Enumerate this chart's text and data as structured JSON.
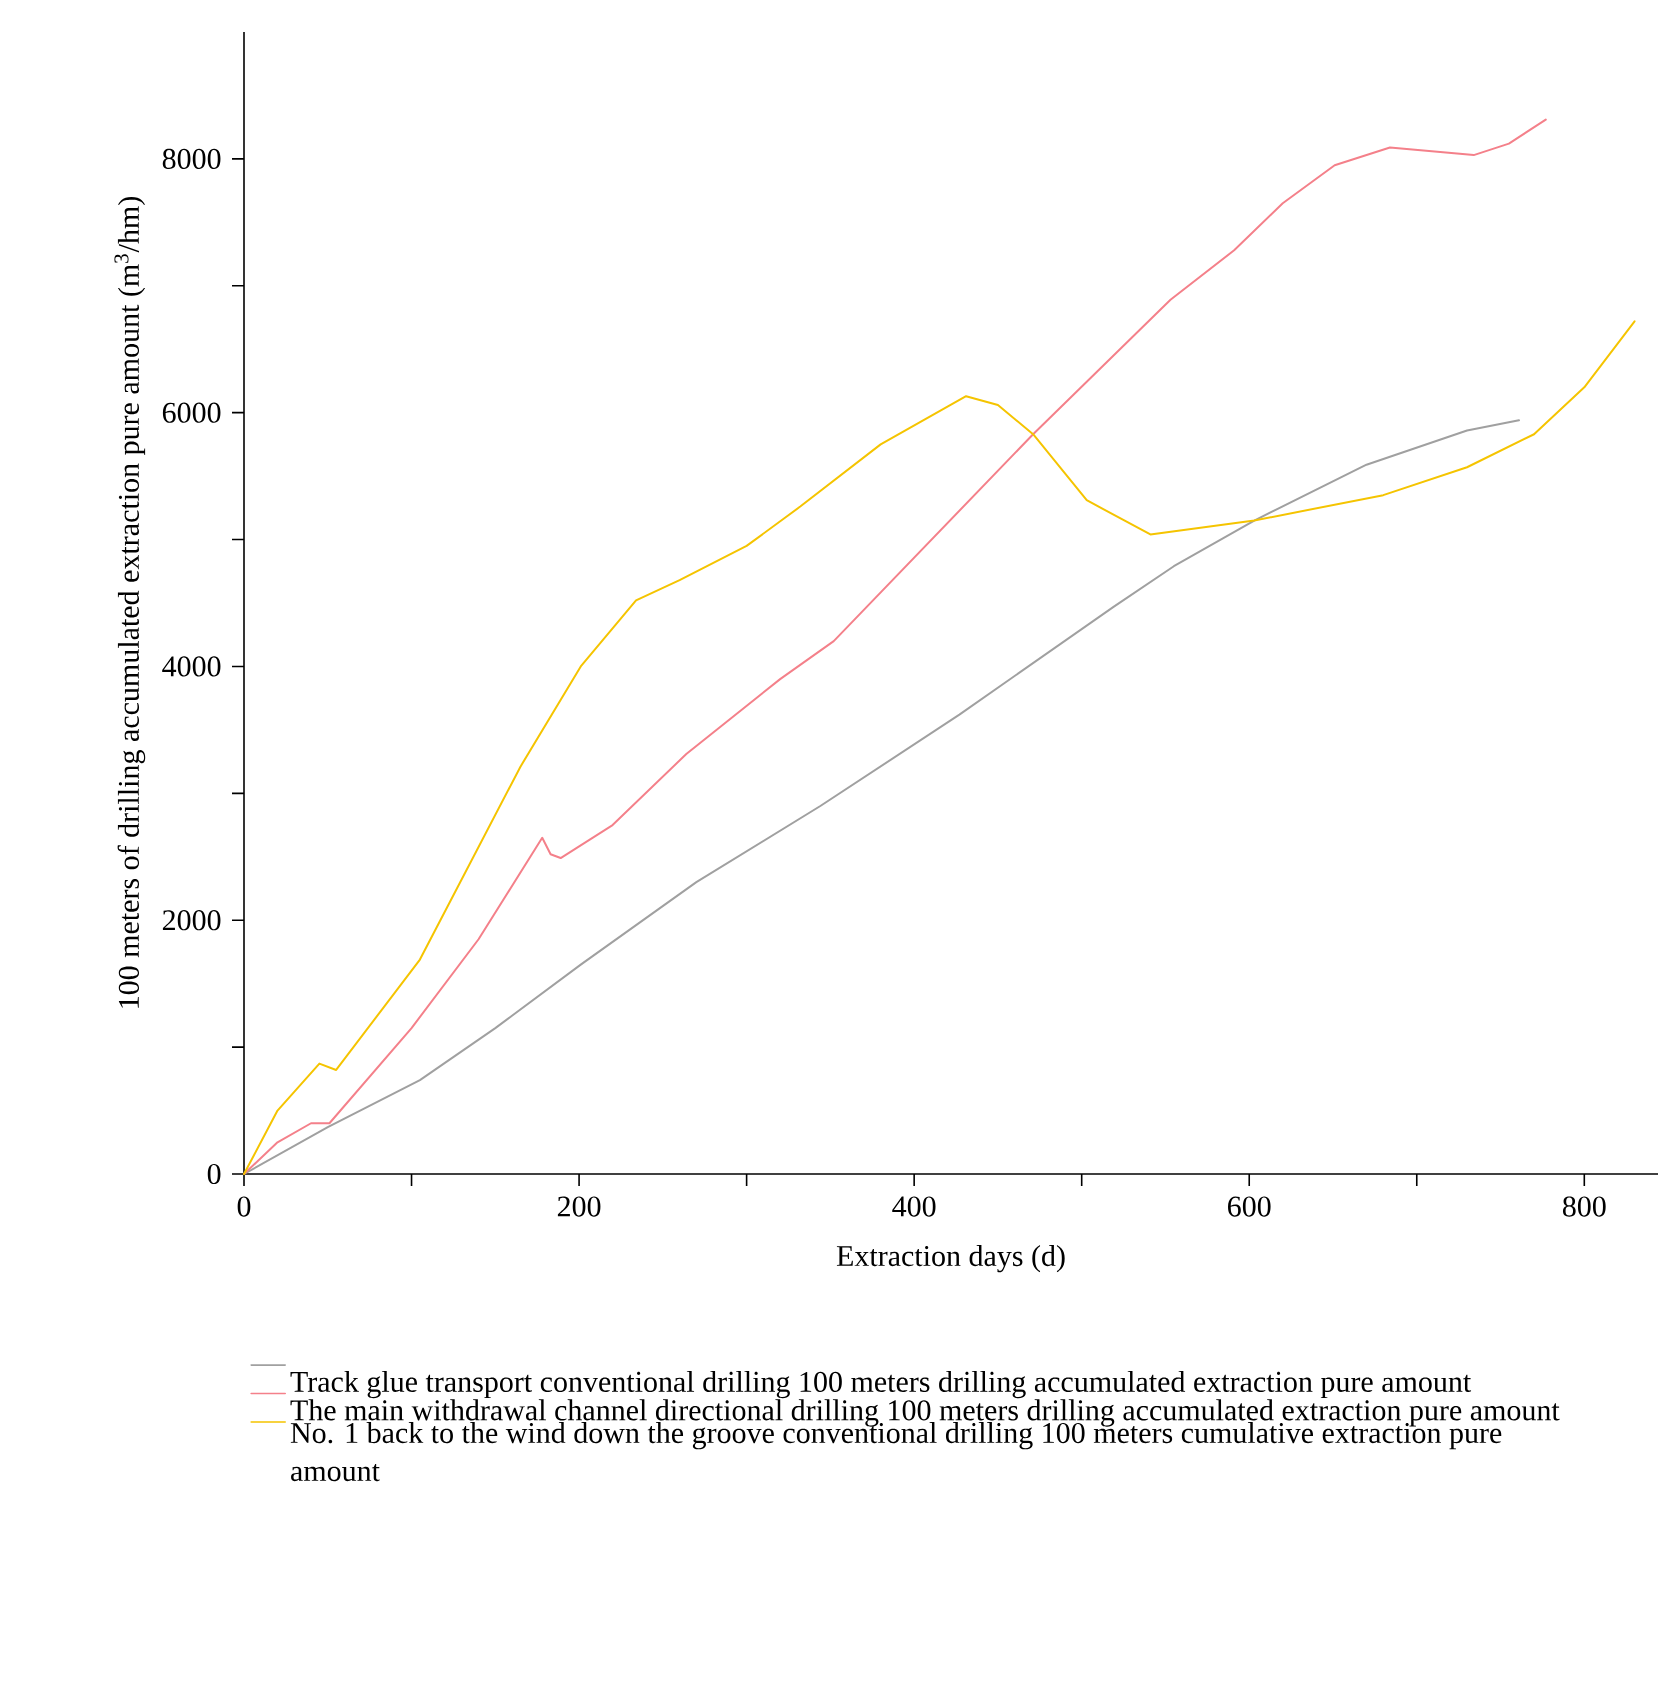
{
  "chart_data": {
    "type": "line",
    "xlabel": "Extraction days (d)",
    "ylabel": "100 meters of drilling accumulated extraction pure amount (m$^{3}$/hm)",
    "xlim": [
      0,
      844
    ],
    "ylim": [
      0,
      9000
    ],
    "xticks": [
      0,
      {
        "value": 100,
        "label": null
      },
      200,
      {
        "value": 300,
        "label": null
      },
      400,
      {
        "value": 500,
        "label": null
      },
      600,
      {
        "value": 700,
        "label": null
      },
      800
    ],
    "yticks": [
      0,
      {
        "value": 1000,
        "label": null
      },
      2000,
      {
        "value": 3000,
        "label": null
      },
      4000,
      {
        "value": 5000,
        "label": null
      },
      6000,
      {
        "value": 7000,
        "label": null
      },
      8000
    ],
    "grid": false,
    "legend": "bottom",
    "marker": "none",
    "line_style": "solid",
    "series": [
      {
        "name": "Track glue transport conventional drilling 100 meters drilling accumulated extraction pure amount",
        "color": "#a0a0a0",
        "x": [
          0,
          50,
          105,
          150,
          201,
          270,
          344,
          427,
          519,
          555,
          603,
          670,
          730,
          761
        ],
        "values": [
          0,
          370,
          740,
          1150,
          1650,
          2300,
          2900,
          3620,
          4470,
          4790,
          5150,
          5590,
          5860,
          5940
        ]
      },
      {
        "name": "The main withdrawal channel directional drilling 100 meters drilling accumulated extraction pure amount",
        "color": "#f4808a",
        "x": [
          0,
          20,
          40,
          51,
          100,
          140,
          178,
          183,
          189,
          220,
          264,
          320,
          352,
          471,
          553,
          591,
          620,
          651,
          684,
          734,
          755,
          777
        ],
        "values": [
          0,
          250,
          400,
          400,
          1150,
          1850,
          2650,
          2520,
          2490,
          2750,
          3310,
          3900,
          4200,
          5830,
          6890,
          7280,
          7650,
          7950,
          8090,
          8030,
          8120,
          8310
        ]
      },
      {
        "name": "No. 1 back to the wind down the groove conventional drilling 100 meters cumulative extraction pure amount",
        "color": "#f5c400",
        "x": [
          0,
          20,
          45,
          55,
          105,
          165,
          201,
          234,
          260,
          300,
          332,
          380,
          431,
          450,
          471,
          503,
          541,
          603,
          680,
          730,
          770,
          800,
          830
        ],
        "values": [
          0,
          500,
          870,
          820,
          1690,
          3210,
          4000,
          4520,
          4680,
          4950,
          5260,
          5750,
          6130,
          6060,
          5830,
          5310,
          5040,
          5150,
          5350,
          5570,
          5830,
          6200,
          6720
        ]
      }
    ]
  }
}
